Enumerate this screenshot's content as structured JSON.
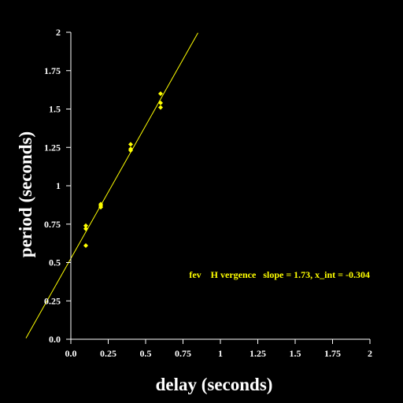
{
  "chart_data": {
    "type": "scatter",
    "xlabel": "delay (seconds)",
    "ylabel": "period (seconds)",
    "xlim": [
      0,
      2
    ],
    "ylim": [
      0,
      2
    ],
    "x_ticks": [
      "0.0",
      "0.25",
      "0.5",
      "0.75",
      "1",
      "1.25",
      "1.5",
      "1.75",
      "2"
    ],
    "y_ticks": [
      "0.0",
      "0.25",
      "0.5",
      "0.75",
      "1",
      "1.25",
      "1.5",
      "1.75",
      "2"
    ],
    "grid": false,
    "annotation": "fev    H vergence   slope = 1.73, x_int = -0.304",
    "series": [
      {
        "points": [
          {
            "x": 0.1,
            "y": 0.61
          },
          {
            "x": 0.1,
            "y": 0.72
          },
          {
            "x": 0.1,
            "y": 0.74
          },
          {
            "x": 0.2,
            "y": 0.86
          },
          {
            "x": 0.2,
            "y": 0.87
          },
          {
            "x": 0.2,
            "y": 0.88
          },
          {
            "x": 0.4,
            "y": 1.23
          },
          {
            "x": 0.4,
            "y": 1.24
          },
          {
            "x": 0.4,
            "y": 1.27
          },
          {
            "x": 0.6,
            "y": 1.51
          },
          {
            "x": 0.6,
            "y": 1.54
          },
          {
            "x": 0.6,
            "y": 1.6
          }
        ]
      }
    ],
    "fit_line": {
      "slope": 1.73,
      "x_int": -0.304,
      "x_range": [
        -0.3,
        0.85
      ]
    },
    "colors": {
      "background": "#000000",
      "axes": "#ffffff",
      "points": "#ffff00",
      "fit_line": "#ffff00",
      "annotation": "#ffff00"
    }
  }
}
